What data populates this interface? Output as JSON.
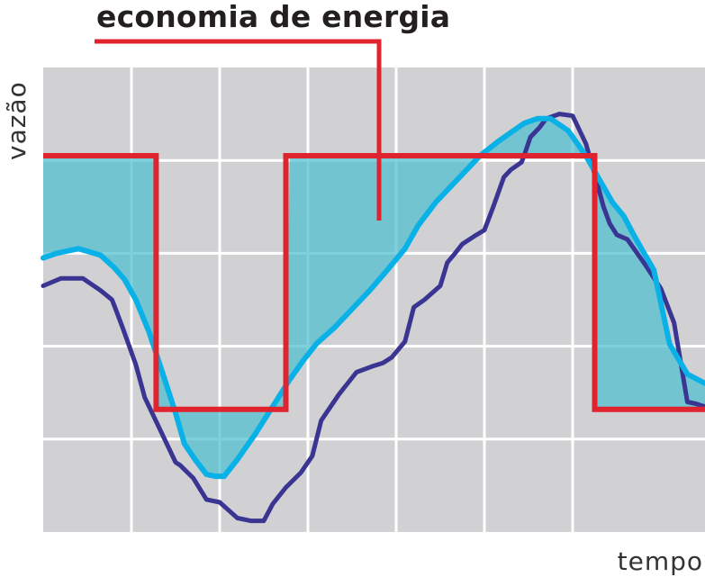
{
  "chart_data": {
    "type": "line",
    "title": "economia de energia",
    "xlabel": "tempo",
    "ylabel": "vazão",
    "xlim": [
      0,
      7.5
    ],
    "ylim": [
      0,
      5
    ],
    "grid": true,
    "series": [
      {
        "role": "demand",
        "color": "#3a3592",
        "x": [
          0,
          0.2,
          0.45,
          0.65,
          0.78,
          0.82,
          0.9,
          1.05,
          1.15,
          1.3,
          1.5,
          1.55,
          1.7,
          1.85,
          2.0,
          2.2,
          2.35,
          2.5,
          2.6,
          2.75,
          2.92,
          3.05,
          3.15,
          3.35,
          3.55,
          3.72,
          3.85,
          3.95,
          4.1,
          4.2,
          4.32,
          4.5,
          4.58,
          4.65,
          4.75,
          4.88,
          5.0,
          5.1,
          5.22,
          5.3,
          5.42,
          5.45,
          5.52,
          5.62,
          5.7,
          5.85,
          6.0,
          6.15,
          6.28,
          6.35,
          6.42,
          6.5,
          6.62,
          6.82,
          7.0,
          7.15,
          7.3,
          7.4,
          7.5
        ],
        "y": [
          2.65,
          2.73,
          2.73,
          2.6,
          2.5,
          2.4,
          2.2,
          1.8,
          1.45,
          1.15,
          0.75,
          0.72,
          0.58,
          0.35,
          0.32,
          0.15,
          0.12,
          0.12,
          0.3,
          0.48,
          0.64,
          0.82,
          1.2,
          1.48,
          1.72,
          1.78,
          1.82,
          1.88,
          2.05,
          2.42,
          2.5,
          2.65,
          2.9,
          2.98,
          3.1,
          3.18,
          3.25,
          3.5,
          3.82,
          3.9,
          3.98,
          4.05,
          4.25,
          4.35,
          4.45,
          4.5,
          4.48,
          4.18,
          3.75,
          3.5,
          3.32,
          3.2,
          3.15,
          2.88,
          2.62,
          2.25,
          1.4,
          1.38,
          1.35
        ]
      },
      {
        "role": "supply",
        "color": "#0ab1e6",
        "x": [
          0,
          0.15,
          0.4,
          0.65,
          0.8,
          0.92,
          1.05,
          1.2,
          1.35,
          1.5,
          1.6,
          1.72,
          1.85,
          1.95,
          2.05,
          2.2,
          2.4,
          2.6,
          2.8,
          2.95,
          3.1,
          3.3,
          3.5,
          3.7,
          3.9,
          4.1,
          4.25,
          4.45,
          4.7,
          4.95,
          5.15,
          5.3,
          5.45,
          5.6,
          5.75,
          5.95,
          6.15,
          6.3,
          6.45,
          6.58,
          6.68,
          6.78,
          6.92,
          7.1,
          7.3,
          7.5
        ],
        "y": [
          2.95,
          3.0,
          3.05,
          2.98,
          2.85,
          2.72,
          2.5,
          2.15,
          1.72,
          1.28,
          0.95,
          0.78,
          0.62,
          0.6,
          0.6,
          0.78,
          1.05,
          1.35,
          1.65,
          1.85,
          2.03,
          2.2,
          2.4,
          2.6,
          2.82,
          3.05,
          3.3,
          3.55,
          3.8,
          4.05,
          4.2,
          4.3,
          4.4,
          4.45,
          4.45,
          4.32,
          4.05,
          3.8,
          3.55,
          3.4,
          3.22,
          3.05,
          2.82,
          2.02,
          1.7,
          1.6
        ]
      },
      {
        "role": "setpoint",
        "color": "#e0242f",
        "x": [
          0,
          1.28,
          1.28,
          2.75,
          2.75,
          6.25,
          6.25,
          7.5
        ],
        "y": [
          4.05,
          4.05,
          1.32,
          1.32,
          4.05,
          4.05,
          1.32,
          1.32
        ]
      }
    ],
    "shading": {
      "color": "#4dbfd0",
      "between": [
        "setpoint",
        "supply"
      ],
      "x_ranges": [
        [
          0,
          1.28
        ],
        [
          1.28,
          2.75
        ],
        [
          2.75,
          6.25
        ],
        [
          6.25,
          7.5
        ]
      ]
    }
  }
}
